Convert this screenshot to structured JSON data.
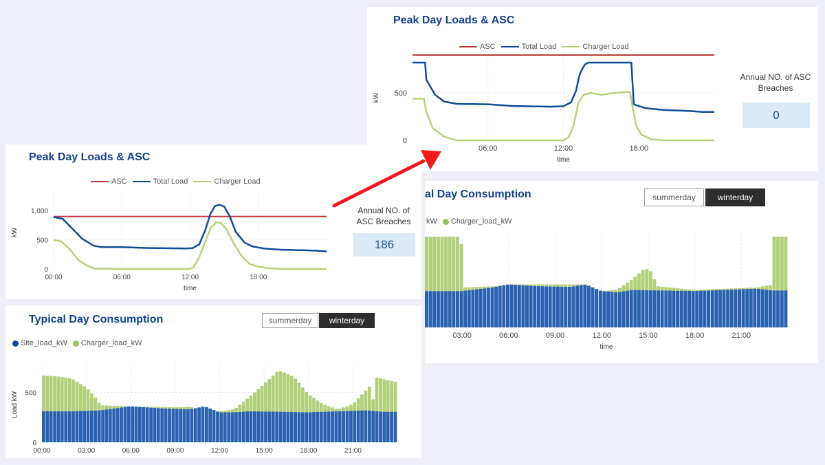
{
  "colors": {
    "background": "#eeeef9",
    "asc": "#c0393b",
    "total_load": "#0e4a9a",
    "charger_load": "#b7d17a",
    "site_bar": "#2a62b0",
    "charger_bar": "#b3cf7a",
    "title": "#123f8c"
  },
  "annotation": {
    "arrow": "red-arrow",
    "description": "zoom-from-left-to-right"
  },
  "left": {
    "peak": {
      "title": "Peak Day Loads & ASC",
      "legend": [
        "ASC",
        "Total Load",
        "Charger Load"
      ],
      "asc_label": "Annual NO. of ASC Breaches",
      "asc_value": "186"
    },
    "typical": {
      "title": "Typical Day Consumption",
      "buttons": {
        "summer": "summerday",
        "winter": "winterday",
        "active": "winterday"
      },
      "legend": [
        "Site_load_kW",
        "Charger_load_kW"
      ]
    }
  },
  "right": {
    "peak": {
      "title": "Peak Day Loads & ASC",
      "legend": [
        "ASC",
        "Total Load",
        "Charger Load"
      ],
      "asc_label": "Annual NO. of ASC Breaches",
      "asc_value": "0"
    },
    "typical": {
      "title": "Typical Day Consumption",
      "title_visible": "al Day Consumption",
      "buttons": {
        "summer": "summerday",
        "winter": "winterday",
        "active": "winterday"
      },
      "legend_visible": [
        "kW",
        "Charger_load_kW"
      ]
    }
  },
  "chart_data": [
    {
      "id": "left-peak",
      "type": "line",
      "title": "Peak Day Loads & ASC",
      "xlabel": "time",
      "ylabel": "kW",
      "xlim": [
        0,
        24
      ],
      "ylim": [
        0,
        1250
      ],
      "xticks": [
        0,
        6,
        12,
        18
      ],
      "xtick_labels": [
        "00:00",
        "06:00",
        "12:00",
        "18:00"
      ],
      "yticks": [
        0,
        500,
        1000
      ],
      "ytick_labels": [
        "0",
        "500",
        "1,000"
      ],
      "xmax": 24,
      "series": [
        {
          "name": "ASC",
          "color": "#c0393b",
          "points": [
            [
              0,
              900
            ],
            [
              24,
              900
            ]
          ]
        },
        {
          "name": "Total Load",
          "color": "#0e4a9a",
          "points": [
            [
              0,
              890
            ],
            [
              0.8,
              860
            ],
            [
              1.5,
              720
            ],
            [
              2.5,
              520
            ],
            [
              3.5,
              400
            ],
            [
              4.2,
              375
            ],
            [
              6,
              375
            ],
            [
              8,
              360
            ],
            [
              10,
              355
            ],
            [
              11.5,
              352
            ],
            [
              12.2,
              355
            ],
            [
              12.8,
              420
            ],
            [
              13.3,
              650
            ],
            [
              13.8,
              950
            ],
            [
              14.2,
              1080
            ],
            [
              14.6,
              1100
            ],
            [
              15,
              1070
            ],
            [
              15.5,
              900
            ],
            [
              16,
              640
            ],
            [
              16.8,
              450
            ],
            [
              17.5,
              385
            ],
            [
              18.5,
              350
            ],
            [
              20,
              330
            ],
            [
              22,
              320
            ],
            [
              23,
              315
            ],
            [
              24,
              300
            ]
          ]
        },
        {
          "name": "Charger Load",
          "color": "#b7d17a",
          "points": [
            [
              0,
              500
            ],
            [
              0.7,
              470
            ],
            [
              1.5,
              320
            ],
            [
              2.2,
              150
            ],
            [
              3,
              50
            ],
            [
              3.6,
              5
            ],
            [
              6,
              0
            ],
            [
              12,
              0
            ],
            [
              12.3,
              30
            ],
            [
              12.8,
              200
            ],
            [
              13.3,
              450
            ],
            [
              13.8,
              700
            ],
            [
              14.3,
              800
            ],
            [
              14.7,
              790
            ],
            [
              15.2,
              680
            ],
            [
              15.8,
              450
            ],
            [
              16.5,
              230
            ],
            [
              17.2,
              90
            ],
            [
              18,
              40
            ],
            [
              19,
              10
            ],
            [
              20,
              0
            ],
            [
              24,
              0
            ]
          ]
        }
      ]
    },
    {
      "id": "left-typical",
      "type": "bar",
      "stacked": true,
      "title": "Typical Day Consumption",
      "xlabel": "",
      "ylabel": "Load kW",
      "xlim": [
        0,
        24
      ],
      "ylim": [
        0,
        750
      ],
      "xticks": [
        0,
        3,
        6,
        9,
        12,
        15,
        18,
        21
      ],
      "xtick_labels": [
        "00:00",
        "03:00",
        "06:00",
        "09:00",
        "12:00",
        "15:00",
        "18:00",
        "21:00"
      ],
      "yticks": [
        0,
        500
      ],
      "ytick_labels": [
        "0",
        "500"
      ],
      "bins": 96,
      "site_profile": [
        [
          0,
          310
        ],
        [
          2,
          310
        ],
        [
          4,
          320
        ],
        [
          6,
          360
        ],
        [
          8,
          340
        ],
        [
          10,
          330
        ],
        [
          11,
          360
        ],
        [
          12,
          300
        ],
        [
          13,
          300
        ],
        [
          14,
          310
        ],
        [
          16,
          305
        ],
        [
          18,
          300
        ],
        [
          20,
          310
        ],
        [
          22,
          320
        ],
        [
          23,
          305
        ],
        [
          24,
          305
        ]
      ],
      "total_profile": [
        [
          0,
          670
        ],
        [
          1,
          660
        ],
        [
          2,
          640
        ],
        [
          3,
          550
        ],
        [
          3.5,
          470
        ],
        [
          4,
          370
        ],
        [
          6,
          360
        ],
        [
          9,
          350
        ],
        [
          10,
          355
        ],
        [
          11,
          320
        ],
        [
          12,
          310
        ],
        [
          13,
          330
        ],
        [
          14,
          450
        ],
        [
          15,
          580
        ],
        [
          16,
          720
        ],
        [
          17,
          660
        ],
        [
          18,
          480
        ],
        [
          19,
          380
        ],
        [
          20,
          330
        ],
        [
          21,
          380
        ],
        [
          22.2,
          570
        ],
        [
          22.5,
          330
        ],
        [
          22.55,
          650
        ],
        [
          24,
          600
        ]
      ]
    },
    {
      "id": "right-peak",
      "type": "line",
      "title": "Peak Day Loads & ASC",
      "xlabel": "time",
      "ylabel": "kW",
      "xlim": [
        0,
        24
      ],
      "ylim": [
        0,
        900
      ],
      "xticks": [
        6,
        12,
        18
      ],
      "xtick_labels": [
        "06:00",
        "12:00",
        "18:00"
      ],
      "yticks": [
        0,
        500
      ],
      "ytick_labels": [
        "0",
        "500"
      ],
      "xmax": 24,
      "series": [
        {
          "name": "ASC",
          "color": "#c0393b",
          "points": [
            [
              0,
              900
            ],
            [
              24,
              900
            ]
          ]
        },
        {
          "name": "Total Load",
          "color": "#0e4a9a",
          "points": [
            [
              0,
              820
            ],
            [
              1,
              820
            ],
            [
              1.1,
              640
            ],
            [
              1.8,
              480
            ],
            [
              2.5,
              410
            ],
            [
              3.5,
              385
            ],
            [
              6,
              380
            ],
            [
              8,
              362
            ],
            [
              11,
              355
            ],
            [
              12,
              360
            ],
            [
              12.6,
              400
            ],
            [
              13,
              520
            ],
            [
              13.3,
              700
            ],
            [
              13.7,
              800
            ],
            [
              14,
              820
            ],
            [
              17.4,
              820
            ],
            [
              17.6,
              380
            ],
            [
              18.5,
              340
            ],
            [
              20,
              320
            ],
            [
              22,
              310
            ],
            [
              23,
              300
            ],
            [
              24,
              300
            ]
          ]
        },
        {
          "name": "Charger Load",
          "color": "#b7d17a",
          "points": [
            [
              0,
              440
            ],
            [
              0.9,
              440
            ],
            [
              1.1,
              300
            ],
            [
              1.6,
              130
            ],
            [
              2.5,
              40
            ],
            [
              3.5,
              0
            ],
            [
              12,
              0
            ],
            [
              12.4,
              30
            ],
            [
              12.8,
              150
            ],
            [
              13.2,
              400
            ],
            [
              13.6,
              480
            ],
            [
              14.2,
              500
            ],
            [
              15,
              480
            ],
            [
              16,
              500
            ],
            [
              17,
              510
            ],
            [
              17.3,
              510
            ],
            [
              17.5,
              350
            ],
            [
              17.8,
              150
            ],
            [
              18.2,
              60
            ],
            [
              19,
              10
            ],
            [
              20,
              0
            ],
            [
              24,
              0
            ]
          ]
        }
      ]
    },
    {
      "id": "right-typical",
      "type": "bar",
      "stacked": true,
      "title": "Typical Day Consumption",
      "xlabel": "time",
      "ylabel": "",
      "xlim": [
        0.6,
        24
      ],
      "ylim": [
        0,
        750
      ],
      "xticks": [
        3,
        6,
        9,
        12,
        15,
        18,
        21
      ],
      "xtick_labels": [
        "03:00",
        "06:00",
        "09:00",
        "12:00",
        "15:00",
        "18:00",
        "21:00"
      ],
      "yticks": [],
      "ytick_labels": [],
      "bins": 94,
      "site_profile": [
        [
          0.6,
          300
        ],
        [
          3,
          300
        ],
        [
          5,
          330
        ],
        [
          6,
          355
        ],
        [
          8,
          340
        ],
        [
          10,
          335
        ],
        [
          11,
          355
        ],
        [
          12,
          300
        ],
        [
          13,
          290
        ],
        [
          14,
          310
        ],
        [
          16,
          305
        ],
        [
          18,
          300
        ],
        [
          20,
          310
        ],
        [
          22,
          320
        ],
        [
          23,
          305
        ],
        [
          24,
          305
        ]
      ],
      "total_profile": [
        [
          0.6,
          750
        ],
        [
          2.95,
          750
        ],
        [
          3.05,
          330
        ],
        [
          5,
          340
        ],
        [
          6,
          355
        ],
        [
          11,
          355
        ],
        [
          12,
          300
        ],
        [
          13,
          310
        ],
        [
          14,
          400
        ],
        [
          14.8,
          490
        ],
        [
          15.2,
          460
        ],
        [
          15.6,
          340
        ],
        [
          18,
          310
        ],
        [
          22,
          330
        ],
        [
          22.9,
          350
        ],
        [
          23.05,
          750
        ],
        [
          24,
          750
        ]
      ]
    }
  ]
}
